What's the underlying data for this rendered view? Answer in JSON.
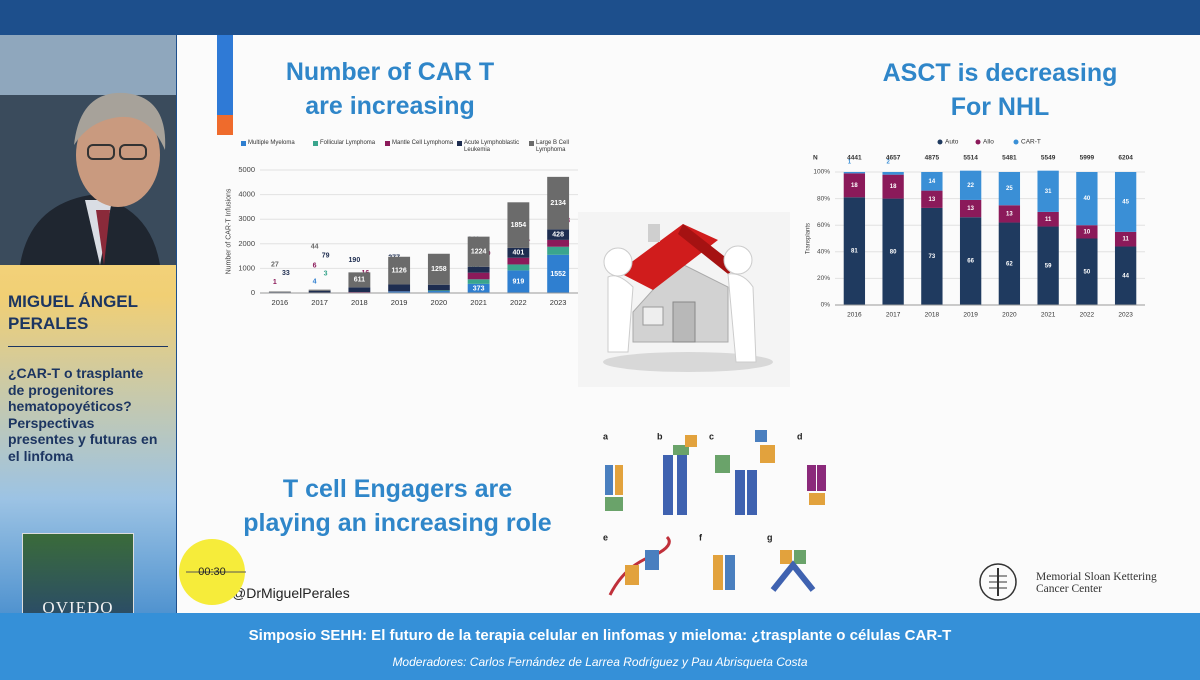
{
  "sidebar": {
    "speaker_lines": [
      "MIGUEL ÁNGEL",
      "PERALES"
    ],
    "talk_title_lines": [
      "¿CAR-T o trasplante",
      "de progenitores",
      "hematopoyéticos?",
      "Perspectivas",
      "presentes y futuras en",
      "el linfoma"
    ],
    "logo_text": "OVIEDO"
  },
  "slide": {
    "title_left_lines": [
      "Number of CAR T",
      "are increasing"
    ],
    "title_right_lines": [
      "ASCT is decreasing",
      "For NHL"
    ],
    "title_bottom_lines": [
      "T cell Engagers are",
      "playing an increasing role"
    ],
    "handle": "@DrMiguelPerales",
    "institution_lines": [
      "Memorial Sloan Kettering",
      "Cancer Center"
    ],
    "figure_labels": [
      "a",
      "b",
      "c",
      "d",
      "e",
      "f",
      "g"
    ],
    "car_t_chart": {
      "type": "bar",
      "stacked": true,
      "y_label": "Number of CAR-T Infusions",
      "categories": [
        "2016",
        "2017",
        "2018",
        "2019",
        "2020",
        "2021",
        "2022",
        "2023"
      ],
      "series": [
        {
          "name": "Multiple Myeloma",
          "color": "#2f7fd0",
          "values": [
            null,
            4,
            null,
            64,
            80,
            373,
            919,
            1552
          ]
        },
        {
          "name": "Follicular Lymphoma",
          "color": "#3aa58d",
          "values": [
            null,
            3,
            22,
            null,
            27,
            184,
            242,
            329
          ]
        },
        {
          "name": "Mantle Cell Lymphoma",
          "color": "#8b1a5a",
          "values": [
            1,
            6,
            16,
            6,
            null,
            269,
            271,
            278
          ]
        },
        {
          "name": "Acute Lymphoblastic Leukemia",
          "color": "#1e2d50",
          "values": [
            33,
            79,
            190,
            277,
            230,
            241,
            401,
            428
          ]
        },
        {
          "name": "Large B Cell Lymphoma",
          "color": "#6b6b6b",
          "values": [
            27,
            44,
            611,
            1126,
            1258,
            1224,
            1854,
            2134
          ]
        }
      ],
      "ylim": [
        0,
        5000
      ],
      "yticks": [
        0,
        1000,
        2000,
        3000,
        4000,
        5000
      ],
      "grid": true
    },
    "asct_chart": {
      "type": "bar",
      "stacked": true,
      "y_label": "Transplants",
      "n_label": "N",
      "n_values": [
        4441,
        4657,
        4875,
        5514,
        5481,
        5549,
        5999,
        6204
      ],
      "categories": [
        "2016",
        "2017",
        "2018",
        "2019",
        "2020",
        "2021",
        "2022",
        "2023"
      ],
      "series": [
        {
          "name": "Auto",
          "color": "#1f3a5f",
          "values": [
            81,
            80,
            73,
            66,
            62,
            59,
            50,
            44
          ]
        },
        {
          "name": "Allo",
          "color": "#8b1a5a",
          "values": [
            18,
            18,
            13,
            13,
            13,
            11,
            10,
            11
          ]
        },
        {
          "name": "CAR-T",
          "color": "#3a8fd6",
          "values": [
            1,
            2,
            14,
            22,
            25,
            31,
            40,
            45
          ]
        }
      ],
      "ylim": [
        0,
        100
      ],
      "yticks": [
        {
          "value": 0,
          "label": "0%"
        },
        {
          "value": 20,
          "label": "20%"
        },
        {
          "value": 40,
          "label": "40%"
        },
        {
          "value": 60,
          "label": "60%"
        },
        {
          "value": 80,
          "label": "80%"
        },
        {
          "value": 100,
          "label": "100%"
        }
      ],
      "grid": true
    }
  },
  "timer": "00:30",
  "banner": {
    "title": "Simposio SEHH: El futuro de la terapia celular en linfomas y mieloma: ¿trasplante o células CAR-T",
    "moderators": "Moderadores: Carlos Fernández de Larrea Rodríguez y Pau Abrisqueta Costa"
  }
}
